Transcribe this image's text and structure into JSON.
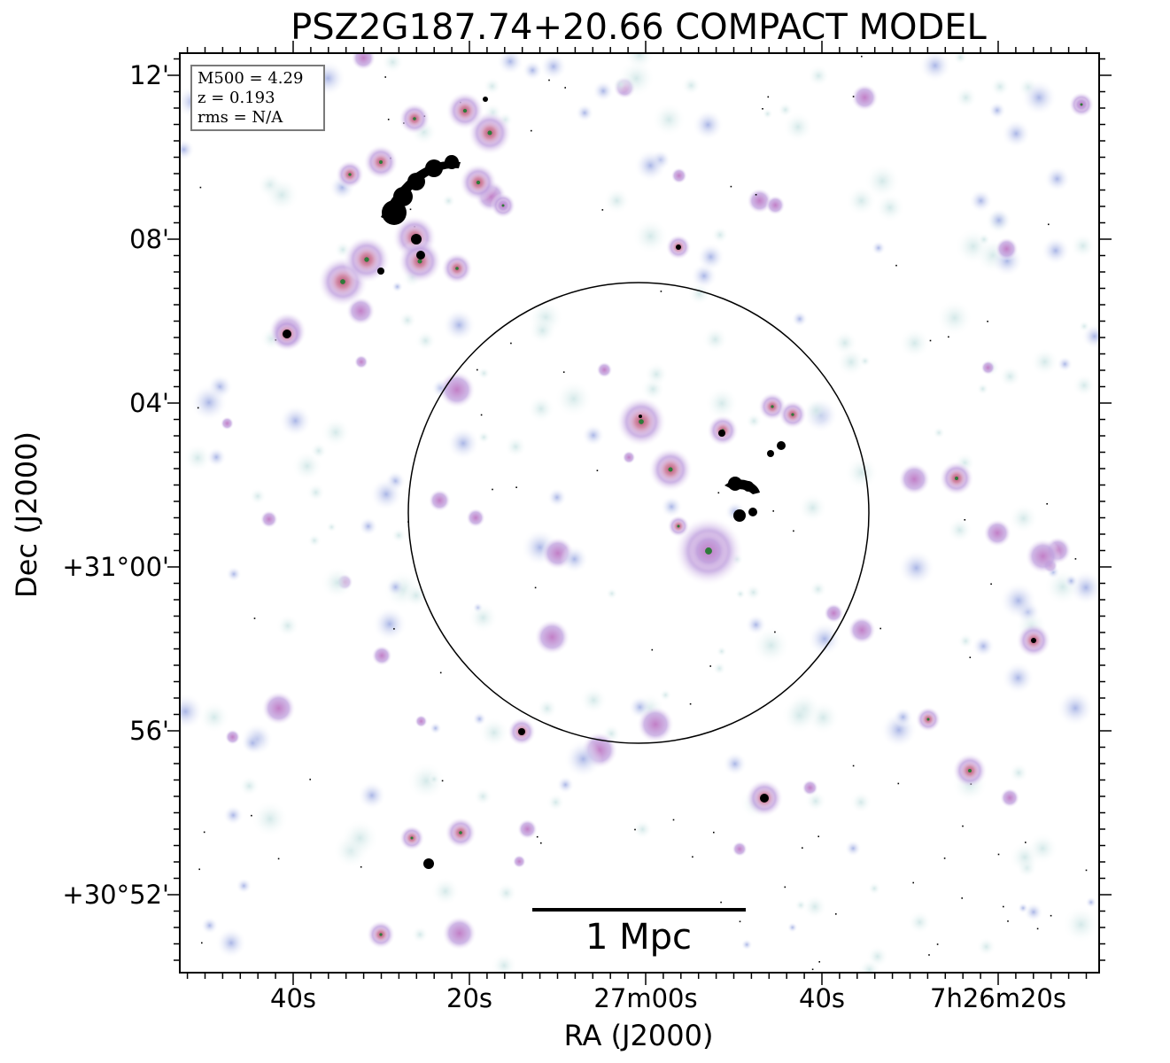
{
  "title": "PSZ2G187.74+20.66 COMPACT MODEL",
  "xaxis": {
    "label": "RA (J2000)",
    "ticks": [
      "40s",
      "20s",
      "27m00s",
      "40s",
      "7h26m20s"
    ]
  },
  "yaxis": {
    "label": "Dec (J2000)",
    "ticks": [
      "12'",
      "08'",
      "04'",
      "+31°00'",
      "56'",
      "+30°52'"
    ]
  },
  "legend": {
    "m500": "M500 = 4.29",
    "z": "z = 0.193",
    "rms": "rms = N/A"
  },
  "scalebar": {
    "label": "1 Mpc"
  },
  "colors": {
    "frame": "#000000",
    "faint_blob": "#cfe6e6",
    "blue_blob": "#b9c2e8",
    "purple_blob": "#c9a3d9",
    "pink_blob": "#c9728a",
    "green_core": "#2f7a3a",
    "dense_core": "#000000"
  }
}
